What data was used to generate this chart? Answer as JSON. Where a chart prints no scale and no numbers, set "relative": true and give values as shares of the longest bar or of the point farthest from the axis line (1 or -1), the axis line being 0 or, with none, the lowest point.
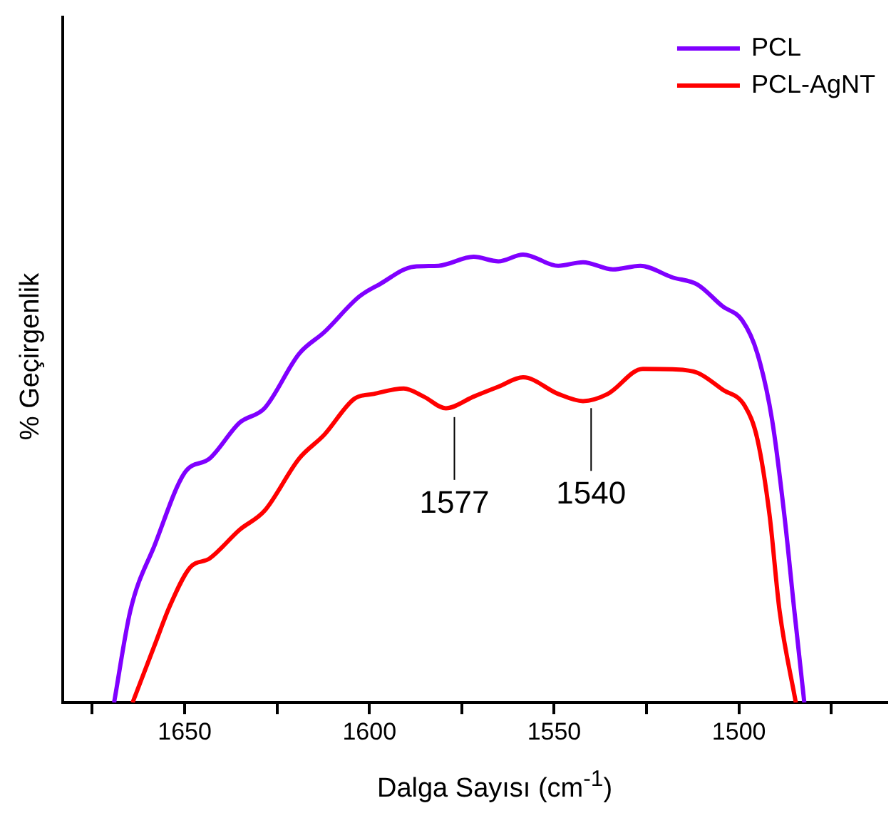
{
  "chart_data": {
    "type": "line",
    "xlabel": "Dalga Sayısı (cm$^{-1}$)",
    "ylabel": "% Geçirgenlik",
    "relative": true,
    "xlim": [
      1683,
      1460
    ],
    "xticks": [
      {
        "value": 1675,
        "label": null
      },
      1650,
      {
        "value": 1625,
        "label": null
      },
      1600,
      {
        "value": 1575,
        "label": null
      },
      1550,
      {
        "value": 1525,
        "label": null
      },
      1500,
      {
        "value": 1475,
        "label": null
      }
    ],
    "legend": "top right",
    "grid": false,
    "marker": "none",
    "line_style": "solid",
    "series": [
      {
        "name": "PCL",
        "color": "#8000ff",
        "x": [
          1669.1,
          1664.7,
          1658,
          1650,
          1643.2,
          1635.1,
          1628.4,
          1619,
          1612.2,
          1602.8,
          1597.4,
          1588,
          1581.3,
          1571.8,
          1565.1,
          1558.4,
          1548.9,
          1542.2,
          1534.1,
          1526.7,
          1518,
          1511.2,
          1504.5,
          1499.1,
          1495,
          1491,
          1487.7,
          1485,
          1482.3
        ],
        "values": [
          0,
          0.205,
          0.354,
          0.513,
          0.545,
          0.625,
          0.657,
          0.779,
          0.827,
          0.906,
          0.933,
          0.973,
          0.975,
          0.995,
          0.985,
          1,
          0.975,
          0.983,
          0.967,
          0.975,
          0.949,
          0.933,
          0.885,
          0.853,
          0.779,
          0.63,
          0.418,
          0.205,
          0
        ]
      },
      {
        "name": "PCL-AgNT",
        "color": "#ff0000",
        "x": [
          1664.1,
          1658,
          1654,
          1648.6,
          1643.2,
          1635.1,
          1628.4,
          1619,
          1612.2,
          1604.1,
          1598.8,
          1590.7,
          1585.3,
          1579.3,
          1571.8,
          1565.1,
          1558.4,
          1548.9,
          1542.2,
          1535.5,
          1526,
          1518,
          1511.2,
          1504.5,
          1498.4,
          1495,
          1491.7,
          1489,
          1484.6
        ],
        "values": [
          0,
          0.131,
          0.216,
          0.301,
          0.322,
          0.386,
          0.428,
          0.545,
          0.598,
          0.678,
          0.689,
          0.701,
          0.683,
          0.657,
          0.683,
          0.705,
          0.726,
          0.689,
          0.673,
          0.689,
          0.745,
          0.744,
          0.736,
          0.699,
          0.662,
          0.588,
          0.418,
          0.205,
          0
        ]
      }
    ],
    "annotations": [
      {
        "text": "1577",
        "x": 1577,
        "y": 0.65
      },
      {
        "text": "1540",
        "x": 1540,
        "y": 0.67
      }
    ]
  }
}
